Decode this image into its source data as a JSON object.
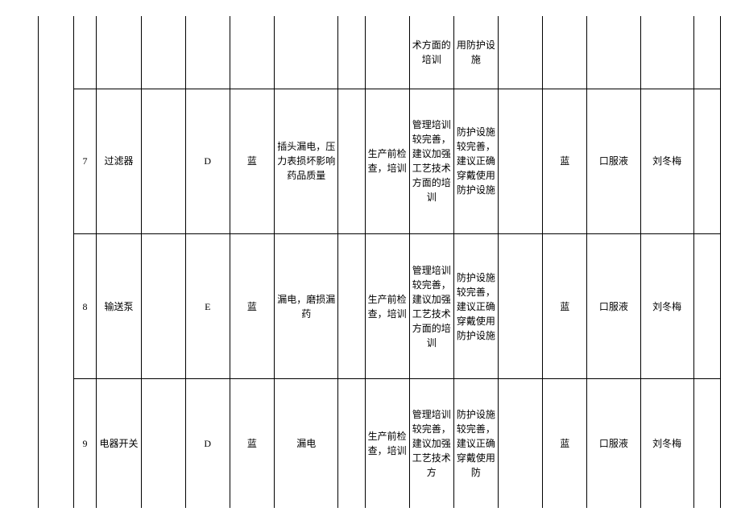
{
  "rows": [
    {
      "partial": true,
      "col10": "术方面的培训",
      "col11": "用防护设施"
    },
    {
      "num": "7",
      "item": "过滤器",
      "code": "D",
      "level": "蓝",
      "risk": "插头漏电，压力表损坏影响药品质量",
      "measure": "生产前检查，培训",
      "note1": "管理培训较完善，建议加强工艺技术方面的培训",
      "note2": "防护设施较完善，建议正确穿戴使用防护设施",
      "level2": "蓝",
      "product": "口服液",
      "person": "刘冬梅"
    },
    {
      "num": "8",
      "item": "输送泵",
      "code": "E",
      "level": "蓝",
      "risk": "漏电，磨损漏药",
      "measure": "生产前检查，培训",
      "note1": "管理培训较完善，建议加强工艺技术方面的培训",
      "note2": "防护设施较完善，建议正确穿戴使用防护设施",
      "level2": "蓝",
      "product": "口服液",
      "person": "刘冬梅"
    },
    {
      "num": "9",
      "item": "电器开关",
      "code": "D",
      "level": "蓝",
      "risk": "漏电",
      "measure": "生产前检查，培训",
      "note1": "管理培训较完善，建议加强工艺技术方",
      "note2": "防护设施较完善，建议正确穿戴使用防",
      "level2": "蓝",
      "product": "口服液",
      "person": "刘冬梅"
    }
  ]
}
